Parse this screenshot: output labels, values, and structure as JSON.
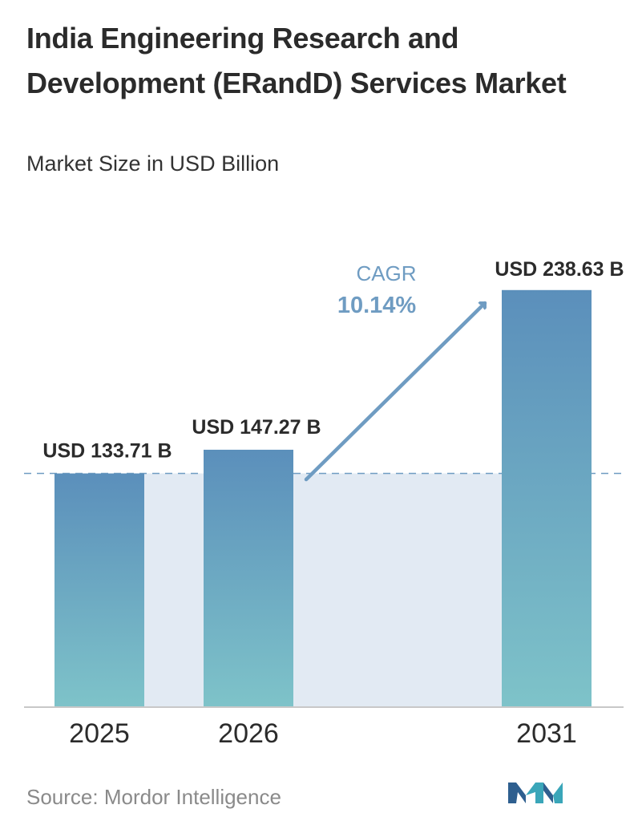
{
  "header": {
    "title": "India Engineering Research and Development (ERandD) Services Market",
    "subtitle": "Market Size in USD Billion"
  },
  "footer": {
    "source": "Source:  Mordor Intelligence",
    "logo_icon": "mordor-intelligence-logo-icon"
  },
  "chart_data": {
    "type": "bar",
    "title": "India Engineering Research and Development (ERandD) Services Market",
    "subtitle": "Market Size in USD Billion",
    "categories": [
      "2025",
      "2026",
      "2031"
    ],
    "values": [
      133.71,
      147.27,
      238.63
    ],
    "value_labels": [
      "USD 133.71 B",
      "USD 147.27 B",
      "USD 238.63 B"
    ],
    "cagr_label": "CAGR",
    "cagr_value": "10.14%",
    "xlabel": "",
    "ylabel": "",
    "grid": false,
    "colors": {
      "bar_top": "#5b8fbb",
      "bar_bottom": "#7ec3c9",
      "band": "#e2eaf3",
      "arrow": "#6f9cc2",
      "reference_line": "#6f9cc2",
      "axis": "#c8c8c8",
      "cagr_text": "#6f9cc2"
    }
  }
}
